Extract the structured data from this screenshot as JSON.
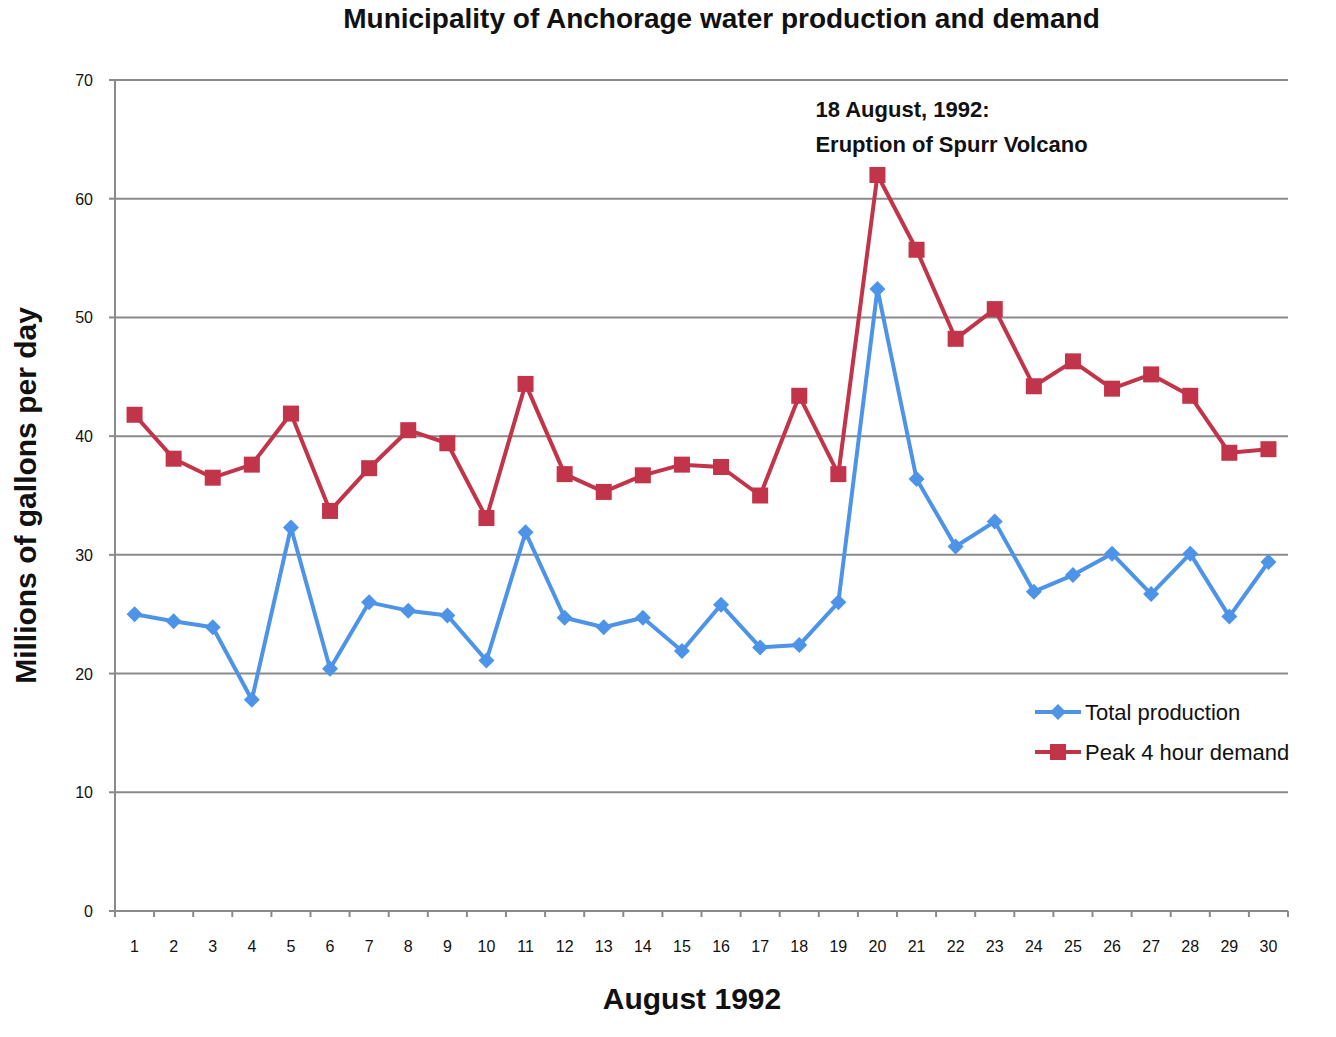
{
  "chart_data": {
    "type": "line",
    "title": "Municipality of Anchorage water production and demand",
    "x_label": "August 1992",
    "y_label": "Millions of gallons per day",
    "annotations": [
      "18 August, 1992:",
      "Eruption of Spurr Volcano"
    ],
    "categories": [
      "1",
      "2",
      "3",
      "4",
      "5",
      "6",
      "7",
      "8",
      "9",
      "10",
      "11",
      "12",
      "13",
      "14",
      "15",
      "16",
      "17",
      "18",
      "19",
      "20",
      "21",
      "22",
      "23",
      "24",
      "25",
      "26",
      "27",
      "28",
      "29",
      "30"
    ],
    "series": [
      {
        "name": "Total production",
        "color": "#4d94e8",
        "marker": "diamond",
        "line_style": "solid",
        "values": [
          25.0,
          24.4,
          23.9,
          17.8,
          32.3,
          20.4,
          26.0,
          25.3,
          24.9,
          21.1,
          31.9,
          24.7,
          23.9,
          24.7,
          21.9,
          25.8,
          22.2,
          22.4,
          26.0,
          52.4,
          36.4,
          30.7,
          32.8,
          26.9,
          28.3,
          30.1,
          26.7,
          30.1,
          24.8,
          29.4
        ]
      },
      {
        "name": "Peak 4 hour demand",
        "color": "#c1344a",
        "marker": "square",
        "line_style": "solid",
        "values": [
          41.8,
          38.1,
          36.5,
          37.6,
          41.9,
          33.7,
          37.3,
          40.5,
          39.4,
          33.1,
          44.4,
          36.8,
          35.3,
          36.7,
          37.6,
          37.4,
          35.0,
          43.4,
          36.8,
          62.0,
          55.7,
          48.2,
          50.7,
          44.2,
          46.3,
          44.0,
          45.2,
          43.4,
          38.6,
          38.9
        ]
      }
    ],
    "ylim": [
      0,
      70
    ],
    "yticks": [
      0,
      10,
      20,
      30,
      40,
      50,
      60,
      70
    ],
    "grid": true,
    "legend": "right"
  }
}
